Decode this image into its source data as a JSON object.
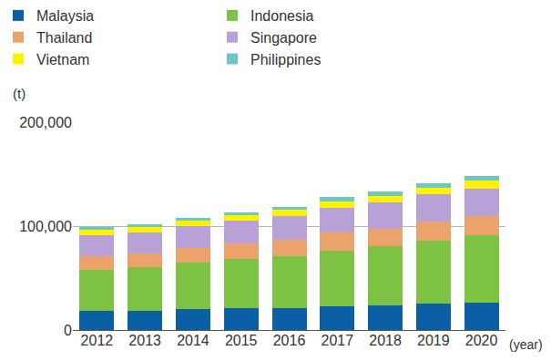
{
  "chart_data": {
    "type": "bar",
    "stacked": true,
    "y_label": "(t)",
    "x_label": "(year)",
    "categories": [
      "2012",
      "2013",
      "2014",
      "2015",
      "2016",
      "2017",
      "2018",
      "2019",
      "2020"
    ],
    "series": [
      {
        "name": "Malaysia",
        "color": "#0b5fa5",
        "values": [
          18400,
          18400,
          20200,
          21000,
          21000,
          22800,
          23700,
          25400,
          26300
        ]
      },
      {
        "name": "Indonesia",
        "color": "#7dc242",
        "values": [
          39500,
          42100,
          44700,
          47400,
          50000,
          53500,
          57000,
          60500,
          64900
        ]
      },
      {
        "name": "Thailand",
        "color": "#eca26b",
        "values": [
          13100,
          13200,
          14000,
          14900,
          15800,
          17500,
          16600,
          18500,
          18400
        ]
      },
      {
        "name": "Singapore",
        "color": "#b8a1d6",
        "values": [
          20200,
          20100,
          21100,
          21900,
          22800,
          23700,
          25500,
          26300,
          26300
        ]
      },
      {
        "name": "Vietnam",
        "color": "#fff200",
        "values": [
          5300,
          5300,
          5200,
          5300,
          6200,
          6200,
          6100,
          6100,
          7900
        ]
      },
      {
        "name": "Philippines",
        "color": "#6fc8c0",
        "values": [
          2600,
          2600,
          2700,
          2600,
          2600,
          4300,
          4400,
          4400,
          4400
        ]
      }
    ],
    "ylim": [
      0,
      200000
    ],
    "yticks": [
      0,
      {
        "value": 100000,
        "label": "100,000"
      },
      {
        "value": 200000,
        "label": "200,000"
      }
    ],
    "grid": true,
    "legend": "top"
  }
}
